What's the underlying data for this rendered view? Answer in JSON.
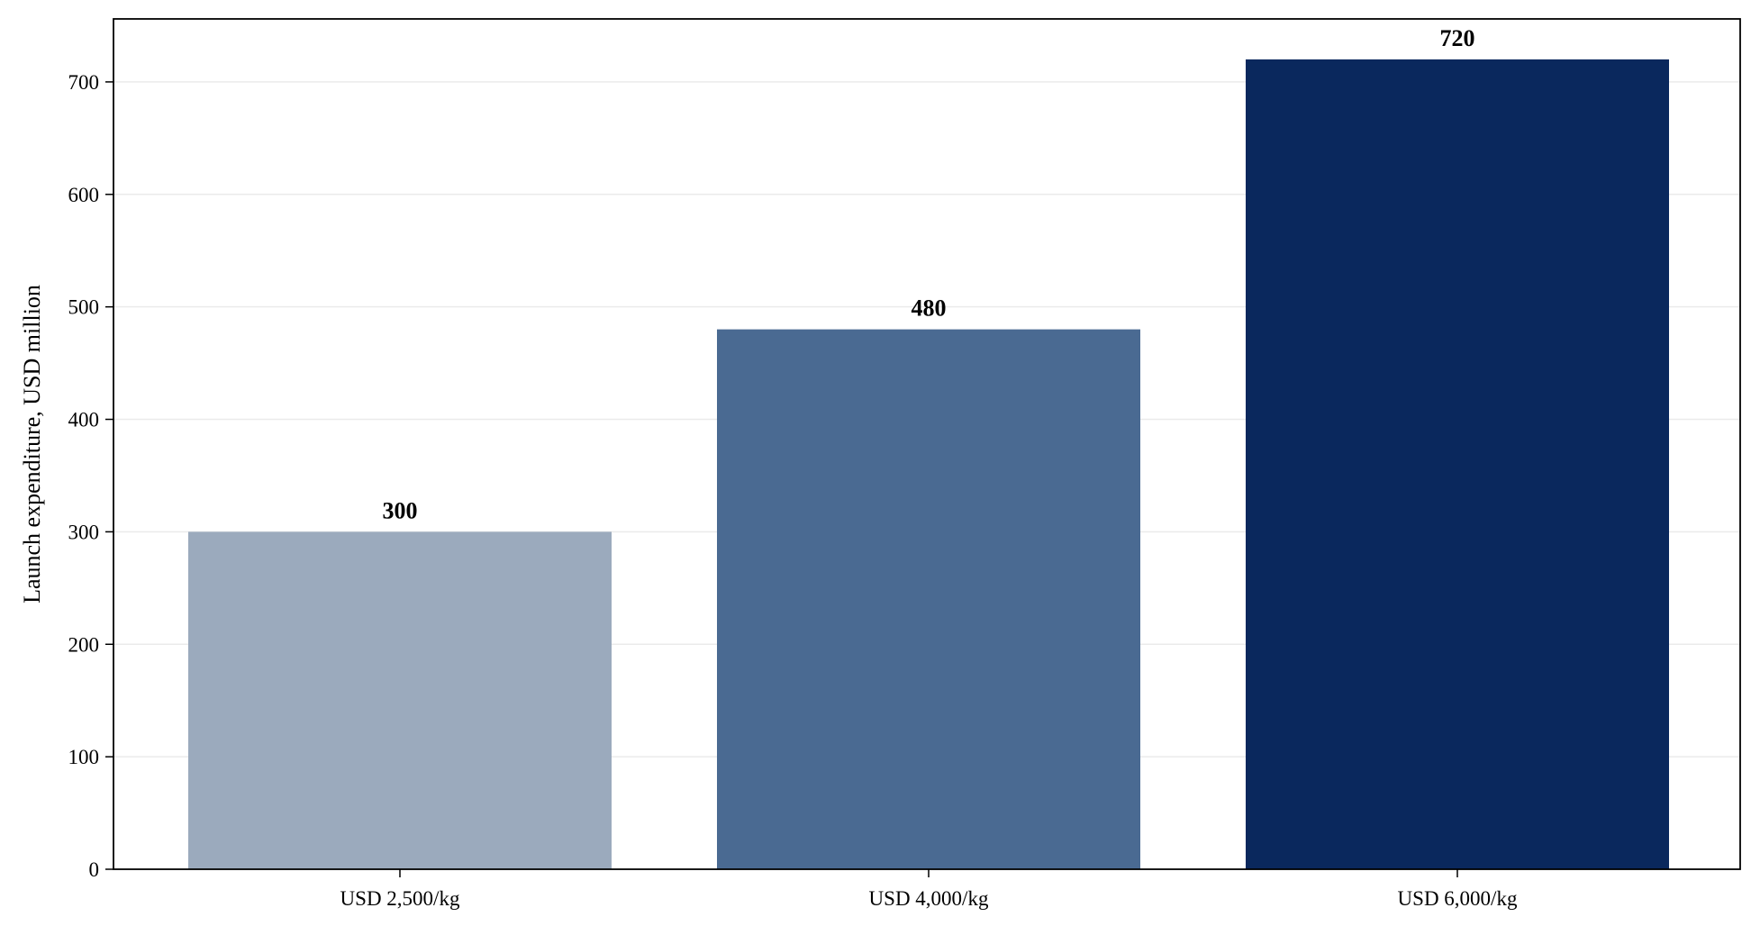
{
  "chart_data": {
    "type": "bar",
    "categories": [
      "USD 2,500/kg",
      "USD 4,000/kg",
      "USD 6,000/kg"
    ],
    "values": [
      300,
      480,
      720
    ],
    "value_labels": [
      "300",
      "480",
      "720"
    ],
    "colors": [
      "#9baabd",
      "#4a6a92",
      "#0a285d"
    ],
    "title": "",
    "xlabel": "",
    "ylabel": "Launch expenditure, USD million",
    "ylim": [
      0,
      756
    ],
    "yticks": [
      0,
      100,
      200,
      300,
      400,
      500,
      600,
      700
    ],
    "ytick_labels": [
      "0",
      "100",
      "200",
      "300",
      "400",
      "500",
      "600",
      "700"
    ],
    "grid": "horizontal",
    "grid_color": "#ebebeb",
    "legend": "none"
  }
}
